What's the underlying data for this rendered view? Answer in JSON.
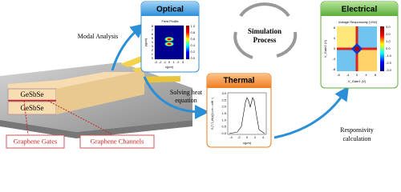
{
  "device": {
    "layers": [
      "GeSbSe",
      "GeSbSe"
    ],
    "labels": [
      "Graphene Gates",
      "Graphene Channels"
    ]
  },
  "steps": {
    "modal": "Modal Analysis",
    "heat": [
      "Solving heat",
      "equation"
    ],
    "responsivity": [
      "Responsivity",
      "calculation"
    ],
    "simulation": [
      "Simulation",
      "Process"
    ]
  },
  "optical": {
    "title": "Optical",
    "plot_title": "Field Profile",
    "ylabel": "y(µm)",
    "xlabel": "x(µm)",
    "yticks": [
      "8",
      "7",
      "6",
      "5",
      "4",
      "3",
      "2",
      "1",
      "0"
    ],
    "xticks": [
      "-3",
      "-2",
      "-1",
      "0",
      "1",
      "2",
      "3"
    ],
    "cbar": [
      "1.0",
      "0.8",
      "0.6",
      "0.4",
      "0.2",
      "0.0"
    ]
  },
  "thermal": {
    "title": "Thermal",
    "ylabel": "S.(T-T₀)/θ(x)(V.cm⁻¹.mW⁻¹)",
    "xlabel": "x(µm)",
    "yticks": [
      "3.0",
      "2.5",
      "2.0",
      "1.5",
      "1.0",
      "0.5",
      "0.0"
    ],
    "xticks": [
      "-4",
      "-2",
      "0",
      "2",
      "4"
    ]
  },
  "electrical": {
    "title": "Electrical",
    "plot_title": "Voltage Responsivity (V/W)",
    "ylabel": "V_Gate2 (V)",
    "xlabel": "V_Gate1 (V)",
    "yticks": [
      "8",
      "4",
      "0",
      "-4",
      "-8"
    ],
    "xticks": [
      "-8",
      "-4",
      "0",
      "4",
      "8"
    ],
    "cbar": [
      "3.0",
      "2.0",
      "1.0",
      "0.0",
      "-1.0",
      "-2.0",
      "-3.0"
    ]
  }
}
